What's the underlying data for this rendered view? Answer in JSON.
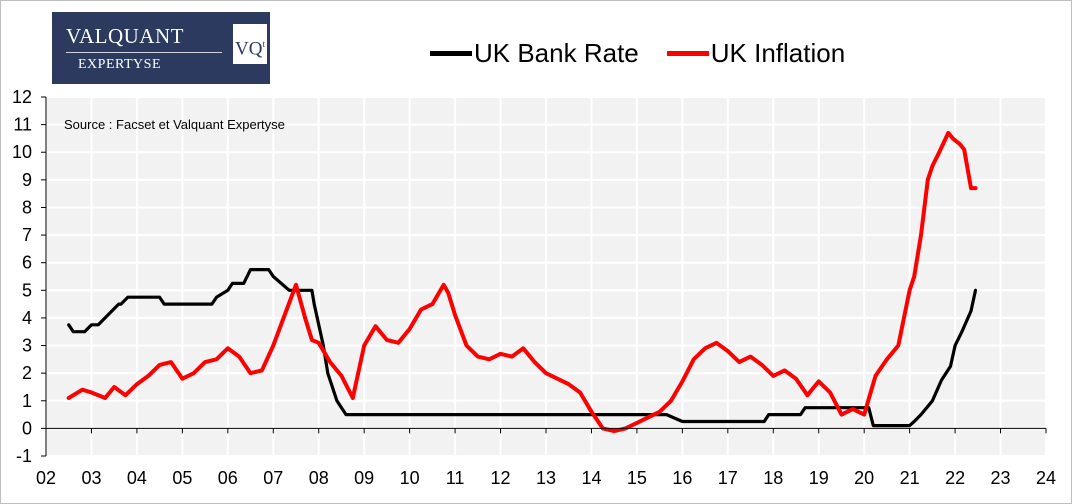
{
  "logo": {
    "line1": "VALQUANT",
    "line2": "EXPERTYSE",
    "mono": "VQ",
    "mono_sup": "t"
  },
  "chart_data": {
    "type": "line",
    "title": "",
    "xlabel": "",
    "ylabel": "",
    "source_note": "Source : Facset et Valquant Expertyse",
    "xlim": [
      2002,
      2024
    ],
    "ylim": [
      -1,
      12
    ],
    "x_ticks": [
      2002,
      2003,
      2004,
      2005,
      2006,
      2007,
      2008,
      2009,
      2010,
      2011,
      2012,
      2013,
      2014,
      2015,
      2016,
      2017,
      2018,
      2019,
      2020,
      2021,
      2022,
      2023,
      2024
    ],
    "x_tick_labels": [
      "02",
      "03",
      "04",
      "05",
      "06",
      "07",
      "08",
      "09",
      "10",
      "11",
      "12",
      "13",
      "14",
      "15",
      "16",
      "17",
      "18",
      "19",
      "20",
      "21",
      "22",
      "23",
      "24"
    ],
    "y_ticks": [
      -1,
      0,
      1,
      2,
      3,
      4,
      5,
      6,
      7,
      8,
      9,
      10,
      11,
      12
    ],
    "y_tick_labels": [
      "-1",
      "0",
      "1",
      "2",
      "3",
      "4",
      "5",
      "6",
      "7",
      "8",
      "9",
      "10",
      "11",
      "12"
    ],
    "grid": true,
    "legend_position": "top",
    "series": [
      {
        "name": "UK Bank Rate",
        "color": "#000000",
        "x": [
          2002.5,
          2002.6,
          2002.85,
          2003.0,
          2003.15,
          2003.3,
          2003.45,
          2003.6,
          2003.65,
          2003.8,
          2004.5,
          2004.6,
          2005.65,
          2005.75,
          2006.0,
          2006.1,
          2006.35,
          2006.5,
          2006.9,
          2007.0,
          2007.35,
          2007.5,
          2007.85,
          2007.9,
          2008.1,
          2008.2,
          2008.4,
          2008.6,
          2009.2,
          2015.65,
          2016.0,
          2016.5,
          2016.6,
          2017.8,
          2017.9,
          2018.6,
          2018.7,
          2019.0,
          2019.2,
          2020.1,
          2020.2,
          2020.35,
          2021.0,
          2021.1,
          2021.25,
          2021.5,
          2021.7,
          2021.9,
          2022.0,
          2022.15,
          2022.35,
          2022.45
        ],
        "y": [
          3.75,
          3.5,
          3.5,
          3.75,
          3.75,
          4.0,
          4.25,
          4.5,
          4.5,
          4.75,
          4.75,
          4.5,
          4.5,
          4.75,
          5.0,
          5.25,
          5.25,
          5.75,
          5.75,
          5.5,
          5.0,
          5.0,
          5.0,
          4.5,
          3.0,
          2.0,
          1.0,
          0.5,
          0.5,
          0.5,
          0.25,
          0.25,
          0.25,
          0.25,
          0.5,
          0.5,
          0.75,
          0.75,
          0.75,
          0.75,
          0.1,
          0.1,
          0.1,
          0.25,
          0.5,
          1.0,
          1.75,
          2.25,
          3.0,
          3.5,
          4.25,
          5.0
        ]
      },
      {
        "name": "UK Inflation",
        "color": "#ff0000",
        "x": [
          2002.5,
          2002.8,
          2003.0,
          2003.3,
          2003.5,
          2003.75,
          2004.0,
          2004.25,
          2004.5,
          2004.75,
          2005.0,
          2005.25,
          2005.5,
          2005.75,
          2006.0,
          2006.25,
          2006.5,
          2006.75,
          2007.0,
          2007.25,
          2007.5,
          2007.7,
          2007.85,
          2008.0,
          2008.25,
          2008.5,
          2008.75,
          2009.0,
          2009.25,
          2009.5,
          2009.75,
          2010.0,
          2010.25,
          2010.5,
          2010.75,
          2010.85,
          2011.0,
          2011.25,
          2011.5,
          2011.75,
          2012.0,
          2012.25,
          2012.5,
          2012.75,
          2013.0,
          2013.25,
          2013.5,
          2013.75,
          2014.0,
          2014.25,
          2014.5,
          2014.75,
          2015.0,
          2015.25,
          2015.5,
          2015.75,
          2016.0,
          2016.25,
          2016.5,
          2016.75,
          2017.0,
          2017.25,
          2017.5,
          2017.75,
          2018.0,
          2018.25,
          2018.5,
          2018.75,
          2019.0,
          2019.25,
          2019.5,
          2019.75,
          2020.0,
          2020.25,
          2020.5,
          2020.75,
          2021.0,
          2021.1,
          2021.25,
          2021.4,
          2021.5,
          2021.65,
          2021.85,
          2021.95,
          2022.1,
          2022.2,
          2022.35,
          2022.45
        ],
        "y": [
          1.1,
          1.4,
          1.3,
          1.1,
          1.5,
          1.2,
          1.6,
          1.9,
          2.3,
          2.4,
          1.8,
          2.0,
          2.4,
          2.5,
          2.9,
          2.6,
          2.0,
          2.1,
          3.0,
          4.1,
          5.2,
          4.0,
          3.2,
          3.1,
          2.4,
          1.9,
          1.1,
          3.0,
          3.7,
          3.2,
          3.1,
          3.6,
          4.3,
          4.5,
          5.2,
          4.9,
          4.1,
          3.0,
          2.6,
          2.5,
          2.7,
          2.6,
          2.9,
          2.4,
          2.0,
          1.8,
          1.6,
          1.3,
          0.6,
          0.0,
          -0.1,
          0.0,
          0.2,
          0.4,
          0.6,
          1.0,
          1.7,
          2.5,
          2.9,
          3.1,
          2.8,
          2.4,
          2.6,
          2.3,
          1.9,
          2.1,
          1.8,
          1.2,
          1.7,
          1.3,
          0.5,
          0.7,
          0.5,
          1.9,
          2.5,
          3.0,
          5.0,
          5.5,
          7.0,
          9.0,
          9.5,
          10.0,
          10.7,
          10.5,
          10.3,
          10.1,
          8.7,
          8.7
        ]
      }
    ]
  }
}
